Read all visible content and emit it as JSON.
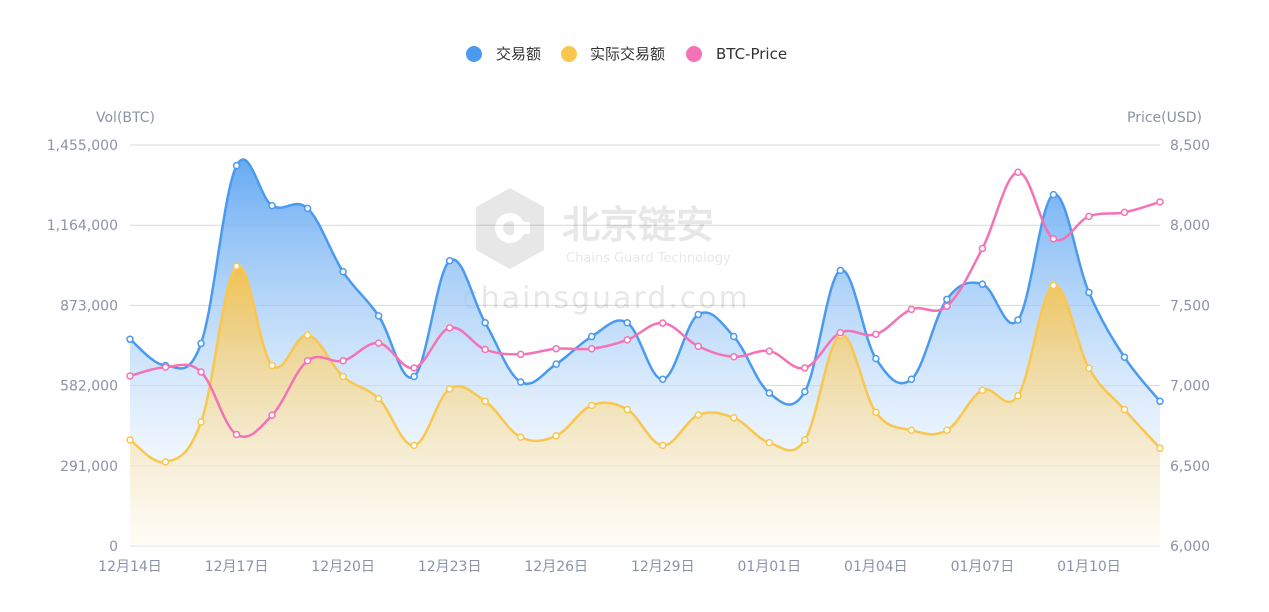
{
  "colors": {
    "volume": "#4a9af0",
    "actual": "#f9c74f",
    "price": "#f472b6",
    "grid": "#d7d9de",
    "axis_text": "#8a93a6"
  },
  "watermark": {
    "brand": "北京链安",
    "sub": "Chains Guard Technology",
    "domain": "chainsguard.com"
  },
  "chart_data": {
    "type": "line",
    "legend_position": "top-center",
    "grid": true,
    "x": [
      "12月14日",
      "12月15日",
      "12月16日",
      "12月17日",
      "12月18日",
      "12月19日",
      "12月20日",
      "12月21日",
      "12月22日",
      "12月23日",
      "12月24日",
      "12月25日",
      "12月26日",
      "12月27日",
      "12月28日",
      "12月29日",
      "12月30日",
      "12月31日",
      "01月01日",
      "01月02日",
      "01月03日",
      "01月04日",
      "01月05日",
      "01月06日",
      "01月07日",
      "01月08日",
      "01月09日",
      "01月10日",
      "01月11日",
      "01月12日"
    ],
    "x_tick_labels": [
      "12月14日",
      "12月17日",
      "12月20日",
      "12月23日",
      "12月26日",
      "12月29日",
      "01月01日",
      "01月04日",
      "01月07日",
      "01月10日"
    ],
    "y_left": {
      "label": "Vol(BTC)",
      "ylim": [
        0,
        1455000
      ],
      "ticks": [
        "0",
        "291,000",
        "582,000",
        "873,000",
        "1,164,000",
        "1,455,000"
      ]
    },
    "y_right": {
      "label": "Price(USD)",
      "ylim": [
        6000,
        8500
      ],
      "ticks": [
        "6,000",
        "6,500",
        "7,000",
        "7,500",
        "8,000",
        "8,500"
      ]
    },
    "series": [
      {
        "name": "交易额",
        "axis": "left",
        "style": "area",
        "values": [
          750000,
          655000,
          735000,
          1380000,
          1235000,
          1225000,
          995000,
          835000,
          615000,
          1035000,
          810000,
          595000,
          660000,
          760000,
          810000,
          605000,
          840000,
          760000,
          555000,
          560000,
          1000000,
          680000,
          605000,
          895000,
          950000,
          820000,
          1275000,
          920000,
          685000,
          525000
        ]
      },
      {
        "name": "实际交易额",
        "axis": "left",
        "style": "area",
        "values": [
          385000,
          305000,
          450000,
          1015000,
          655000,
          765000,
          615000,
          535000,
          365000,
          570000,
          525000,
          395000,
          400000,
          510000,
          495000,
          365000,
          475000,
          465000,
          375000,
          385000,
          765000,
          485000,
          420000,
          420000,
          565000,
          545000,
          945000,
          645000,
          495000,
          355000
        ]
      },
      {
        "name": "BTC-Price",
        "axis": "right",
        "style": "line",
        "values": [
          7060,
          7115,
          7085,
          6695,
          6815,
          7155,
          7155,
          7265,
          7110,
          7360,
          7225,
          7195,
          7230,
          7230,
          7285,
          7390,
          7245,
          7180,
          7215,
          7110,
          7330,
          7320,
          7475,
          7495,
          7855,
          8330,
          7915,
          8055,
          8080,
          8145
        ]
      }
    ]
  }
}
